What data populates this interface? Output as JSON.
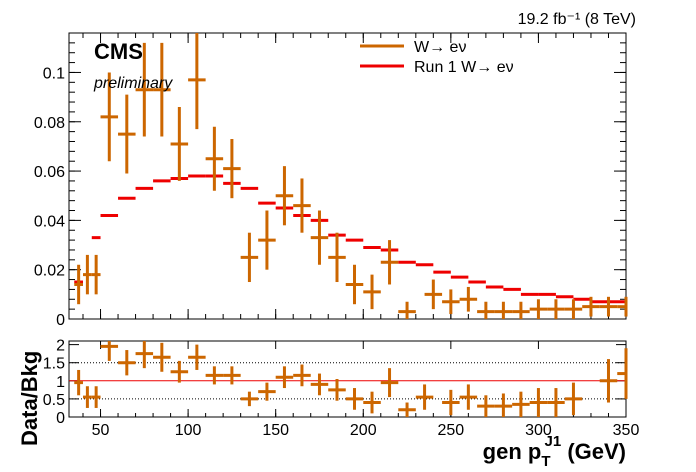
{
  "chart_data": {
    "type": "scatter",
    "lumi_label": "19.2 fb⁻¹ (8 TeV)",
    "cms_label": "CMS",
    "preliminary_label": "preliminary",
    "xlabel": "gen pT J1 (GeV)",
    "xlabel_main": "gen p",
    "xlabel_sub": "T",
    "xlabel_sup": "J1",
    "xlabel_unit": " (GeV)",
    "ratio_ylabel": "Data/Bkg",
    "xlim": [
      32,
      350
    ],
    "ylim": [
      0,
      0.116
    ],
    "ratio_ylim": [
      0,
      2.1
    ],
    "x_ticks": [
      50,
      100,
      150,
      200,
      250,
      300,
      350
    ],
    "y_ticks": [
      0,
      0.02,
      0.04,
      0.06,
      0.08,
      0.1
    ],
    "y_tick_labels": [
      "0",
      "0.02",
      "0.04",
      "0.06",
      "0.08",
      "0.1"
    ],
    "ratio_y_ticks": [
      0,
      0.5,
      1,
      1.5,
      2
    ],
    "ratio_y_tick_labels": [
      "0",
      "0.5",
      "1",
      "1.5",
      "2"
    ],
    "ratio_ref_line": 1,
    "ratio_dotted_lines": [
      0.5,
      1.5
    ],
    "legend_placement": "top-right",
    "series": [
      {
        "name": "W→ eν",
        "color": "#cc6600",
        "style": "points with error bars",
        "x": [
          37.5,
          42.5,
          47.5,
          55,
          65,
          75,
          85,
          95,
          105,
          115,
          125,
          135,
          145,
          155,
          165,
          175,
          185,
          195,
          205,
          215,
          225,
          240,
          250,
          260,
          270,
          280,
          290,
          300,
          310,
          320,
          330,
          340,
          350
        ],
        "xerr": [
          2.5,
          2.5,
          2.5,
          5,
          5,
          5,
          5,
          5,
          5,
          5,
          5,
          5,
          5,
          5,
          5,
          5,
          5,
          5,
          5,
          5,
          5,
          5,
          5,
          5,
          5,
          5,
          5,
          5,
          5,
          5,
          5,
          5,
          5
        ],
        "y": [
          0.014,
          0.018,
          0.018,
          0.082,
          0.075,
          0.093,
          0.093,
          0.071,
          0.097,
          0.065,
          0.061,
          0.025,
          0.032,
          0.05,
          0.046,
          0.033,
          0.025,
          0.014,
          0.011,
          0.023,
          0.003,
          0.01,
          0.007,
          0.008,
          0.003,
          0.003,
          0.003,
          0.004,
          0.004,
          0.004,
          0.005,
          0.005,
          0.005
        ],
        "yerr": [
          0.008,
          0.008,
          0.008,
          0.018,
          0.016,
          0.019,
          0.019,
          0.015,
          0.02,
          0.013,
          0.012,
          0.01,
          0.012,
          0.012,
          0.011,
          0.011,
          0.01,
          0.008,
          0.007,
          0.009,
          0.004,
          0.006,
          0.005,
          0.005,
          0.004,
          0.004,
          0.004,
          0.004,
          0.004,
          0.004,
          0.004,
          0.004,
          0.004
        ]
      },
      {
        "name": "Run 1 W→ eν",
        "color": "#ee0000",
        "style": "horizontal bars",
        "x": [
          37.5,
          47.5,
          55,
          65,
          75,
          85,
          95,
          105,
          115,
          125,
          135,
          145,
          155,
          165,
          175,
          185,
          195,
          205,
          215,
          225,
          235,
          245,
          255,
          265,
          275,
          285,
          295,
          305,
          315,
          325,
          335,
          345
        ],
        "xerr": [
          2.5,
          2.5,
          5,
          5,
          5,
          5,
          5,
          5,
          5,
          5,
          5,
          5,
          5,
          5,
          5,
          5,
          5,
          5,
          5,
          5,
          5,
          5,
          5,
          5,
          5,
          5,
          5,
          5,
          5,
          5,
          5,
          5
        ],
        "y": [
          0.015,
          0.033,
          0.042,
          0.049,
          0.053,
          0.056,
          0.057,
          0.058,
          0.058,
          0.055,
          0.053,
          0.047,
          0.045,
          0.042,
          0.04,
          0.034,
          0.032,
          0.029,
          0.028,
          0.023,
          0.022,
          0.019,
          0.017,
          0.015,
          0.013,
          0.012,
          0.01,
          0.01,
          0.009,
          0.008,
          0.007,
          0.007
        ]
      }
    ],
    "ratio_series": {
      "name": "Data/Bkg",
      "color": "#cc6600",
      "x": [
        37.5,
        42.5,
        47.5,
        55,
        65,
        75,
        85,
        95,
        105,
        115,
        125,
        135,
        145,
        155,
        165,
        175,
        185,
        195,
        205,
        215,
        225,
        235,
        250,
        260,
        270,
        280,
        290,
        300,
        310,
        320,
        340,
        350
      ],
      "xerr": [
        2.5,
        2.5,
        2.5,
        5,
        5,
        5,
        5,
        5,
        5,
        5,
        5,
        5,
        5,
        5,
        5,
        5,
        5,
        5,
        5,
        5,
        5,
        5,
        5,
        5,
        5,
        5,
        5,
        5,
        5,
        5,
        5,
        5
      ],
      "y": [
        0.95,
        0.55,
        0.55,
        1.95,
        1.5,
        1.75,
        1.65,
        1.25,
        1.65,
        1.15,
        1.15,
        0.5,
        0.7,
        1.1,
        1.15,
        0.9,
        0.75,
        0.5,
        0.4,
        0.95,
        0.2,
        0.55,
        0.4,
        0.55,
        0.3,
        0.3,
        0.35,
        0.4,
        0.4,
        0.5,
        1.0,
        1.2
      ],
      "yerr": [
        0.35,
        0.3,
        0.3,
        0.4,
        0.35,
        0.4,
        0.4,
        0.3,
        0.35,
        0.25,
        0.25,
        0.2,
        0.25,
        0.3,
        0.3,
        0.3,
        0.3,
        0.3,
        0.3,
        0.4,
        0.2,
        0.35,
        0.35,
        0.35,
        0.3,
        0.35,
        0.35,
        0.4,
        0.4,
        0.45,
        0.6,
        0.7
      ]
    }
  }
}
